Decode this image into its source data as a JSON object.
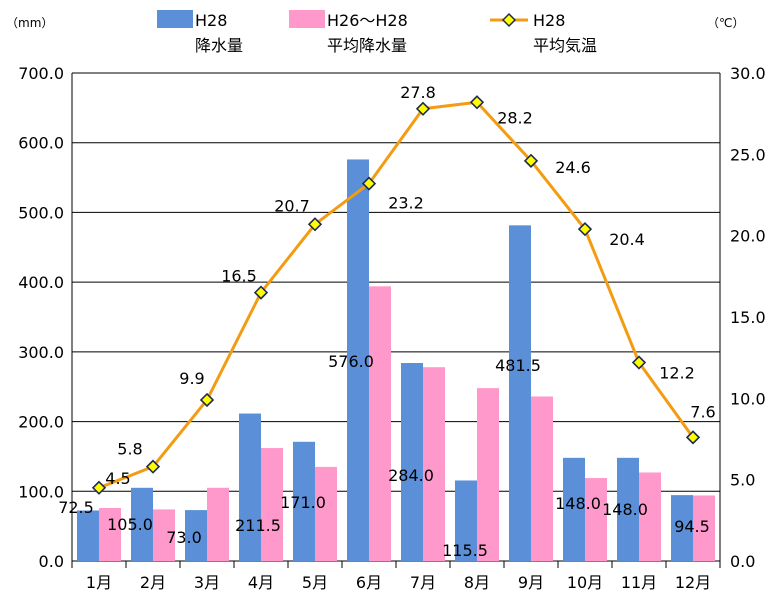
{
  "chart_data": {
    "type": "bar",
    "categories": [
      "1月",
      "2月",
      "3月",
      "4月",
      "5月",
      "6月",
      "7月",
      "8月",
      "9月",
      "10月",
      "11月",
      "12月"
    ],
    "series": [
      {
        "name": "H28 降水量",
        "kind": "bar",
        "axis": "left",
        "color": "#5b8fd8",
        "values": [
          72.5,
          105.0,
          73.0,
          211.5,
          171.0,
          576.0,
          284.0,
          115.5,
          481.5,
          148.0,
          148.0,
          94.5
        ],
        "labels": [
          "72.5",
          "105.0",
          "73.0",
          "211.5",
          "171.0",
          "576.0",
          "284.0",
          "115.5",
          "481.5",
          "148.0",
          "148.0",
          "94.5"
        ]
      },
      {
        "name": "H26〜H28 平均降水量",
        "kind": "bar",
        "axis": "left",
        "color": "#ff99cc",
        "values": [
          76,
          74,
          105,
          162,
          135,
          394,
          278,
          248,
          236,
          119,
          127,
          94
        ]
      },
      {
        "name": "H28 平均気温",
        "kind": "line",
        "axis": "right",
        "color": "#f39c12",
        "marker_color": "#ffff00",
        "values": [
          4.5,
          5.8,
          9.9,
          16.5,
          20.7,
          23.2,
          27.8,
          28.2,
          24.6,
          20.4,
          12.2,
          7.6
        ],
        "labels": [
          "4.5",
          "5.8",
          "9.9",
          "16.5",
          "20.7",
          "23.2",
          "27.8",
          "28.2",
          "24.6",
          "20.4",
          "12.2",
          "7.6"
        ]
      }
    ],
    "y_left": {
      "unit": "（mm）",
      "ylim": [
        0,
        700
      ],
      "ticks": [
        "0.0",
        "100.0",
        "200.0",
        "300.0",
        "400.0",
        "500.0",
        "600.0",
        "700.0"
      ]
    },
    "y_right": {
      "unit": "（℃）",
      "ylim": [
        0,
        30
      ],
      "ticks": [
        "0.0",
        "5.0",
        "10.0",
        "15.0",
        "20.0",
        "25.0",
        "30.0"
      ]
    },
    "grid": "horizontal",
    "legend": {
      "placement": "top",
      "entries": [
        {
          "line1": "H28",
          "line2": "降水量"
        },
        {
          "line1": "H26〜H28",
          "line2": "平均降水量"
        },
        {
          "line1": "H28",
          "line2": "平均気温"
        }
      ]
    }
  }
}
